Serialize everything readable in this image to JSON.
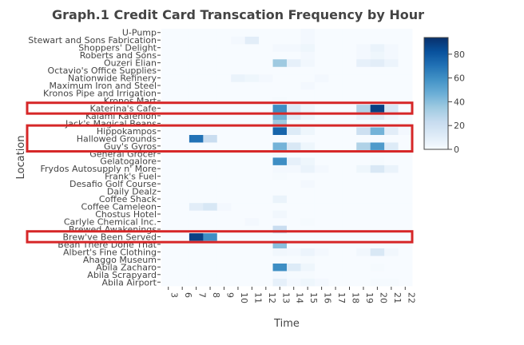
{
  "chart_data": {
    "type": "heatmap",
    "title": "Graph.1 Credit Card Transcation Frequency by Hour",
    "xlabel": "Time",
    "ylabel": "Location",
    "x": [
      "3",
      "6",
      "7",
      "8",
      "9",
      "10",
      "11",
      "12",
      "13",
      "14",
      "15",
      "16",
      "17",
      "18",
      "19",
      "20",
      "21",
      "22"
    ],
    "y": [
      "Abila Airport",
      "Abila Scrapyard",
      "Abila Zacharo",
      "Ahaggo Museum",
      "Albert's Fine Clothing",
      "Bean There Done That",
      "Brew've Been Served",
      "Brewed Awakenings",
      "Carlyle Chemical Inc.",
      "Chostus Hotel",
      "Coffee Cameleon",
      "Coffee Shack",
      "Daily Dealz",
      "Desafio Golf Course",
      "Frank's Fuel",
      "Frydos Autosupply n' More",
      "Gelatogalore",
      "General Grocer",
      "Guy's Gyros",
      "Hallowed Grounds",
      "Hippokampos",
      "Jack's Magical Beans",
      "Kalami Kafenion",
      "Katerina's Cafe",
      "Kronos Mart",
      "Kronos Pipe and Irrigation",
      "Maximum Iron and Steel",
      "Nationwide Refinery",
      "Octavio's Office Supplies",
      "Ouzeri Elian",
      "Roberts and Sons",
      "Shoppers' Delight",
      "Stewart and Sons Fabrication",
      "U-Pump"
    ],
    "z": [
      [
        0,
        0,
        0,
        0,
        0,
        0,
        0,
        0,
        8,
        2,
        4,
        2,
        0,
        0,
        0,
        1,
        1,
        0
      ],
      [
        0,
        0,
        0,
        0,
        0,
        0,
        0,
        0,
        2,
        1,
        1,
        0,
        0,
        0,
        0,
        0,
        0,
        0
      ],
      [
        0,
        0,
        0,
        0,
        0,
        0,
        0,
        0,
        60,
        12,
        4,
        0,
        0,
        0,
        0,
        1,
        0,
        0
      ],
      [
        0,
        0,
        0,
        0,
        0,
        0,
        0,
        0,
        0,
        0,
        1,
        0,
        0,
        0,
        0,
        0,
        0,
        0
      ],
      [
        0,
        0,
        0,
        0,
        0,
        0,
        0,
        0,
        3,
        2,
        5,
        2,
        0,
        0,
        3,
        14,
        3,
        0
      ],
      [
        0,
        0,
        0,
        0,
        0,
        0,
        0,
        0,
        40,
        0,
        0,
        0,
        0,
        0,
        0,
        0,
        0,
        0
      ],
      [
        0,
        0,
        88,
        60,
        0,
        0,
        0,
        0,
        0,
        0,
        0,
        0,
        0,
        0,
        0,
        0,
        0,
        0
      ],
      [
        0,
        0,
        0,
        0,
        0,
        0,
        0,
        0,
        22,
        0,
        0,
        0,
        0,
        0,
        0,
        0,
        0,
        0
      ],
      [
        0,
        0,
        0,
        0,
        0,
        0,
        2,
        0,
        0,
        0,
        1,
        0,
        0,
        0,
        0,
        0,
        0,
        0
      ],
      [
        0,
        0,
        0,
        0,
        0,
        0,
        0,
        0,
        3,
        0,
        0,
        0,
        0,
        0,
        0,
        0,
        0,
        0
      ],
      [
        0,
        0,
        10,
        15,
        2,
        0,
        0,
        0,
        0,
        0,
        0,
        0,
        0,
        0,
        0,
        0,
        0,
        0
      ],
      [
        0,
        0,
        0,
        0,
        0,
        0,
        0,
        0,
        6,
        0,
        0,
        0,
        0,
        0,
        0,
        0,
        0,
        0
      ],
      [
        0,
        0,
        0,
        0,
        0,
        0,
        0,
        0,
        0,
        0,
        0,
        0,
        0,
        0,
        0,
        0,
        0,
        0
      ],
      [
        0,
        0,
        0,
        0,
        0,
        0,
        0,
        0,
        0,
        0,
        2,
        0,
        0,
        0,
        0,
        0,
        0,
        0
      ],
      [
        0,
        0,
        0,
        0,
        0,
        0,
        0,
        0,
        1,
        0,
        0,
        0,
        0,
        0,
        0,
        0,
        0,
        0
      ],
      [
        0,
        0,
        0,
        0,
        0,
        0,
        0,
        0,
        2,
        2,
        6,
        2,
        0,
        0,
        4,
        14,
        6,
        0
      ],
      [
        0,
        0,
        0,
        0,
        0,
        0,
        0,
        0,
        60,
        8,
        4,
        0,
        0,
        0,
        0,
        1,
        0,
        0
      ],
      [
        0,
        0,
        0,
        0,
        0,
        0,
        0,
        0,
        2,
        0,
        0,
        0,
        0,
        0,
        0,
        0,
        0,
        0
      ],
      [
        0,
        0,
        0,
        0,
        0,
        0,
        0,
        0,
        45,
        14,
        4,
        0,
        0,
        0,
        30,
        55,
        12,
        0
      ],
      [
        0,
        0,
        70,
        22,
        0,
        0,
        0,
        0,
        0,
        0,
        0,
        0,
        0,
        0,
        0,
        0,
        0,
        0
      ],
      [
        0,
        0,
        0,
        0,
        0,
        0,
        0,
        0,
        75,
        12,
        4,
        0,
        0,
        0,
        20,
        45,
        10,
        2
      ],
      [
        0,
        0,
        0,
        0,
        0,
        0,
        0,
        0,
        35,
        0,
        0,
        0,
        0,
        0,
        0,
        0,
        0,
        0
      ],
      [
        0,
        0,
        0,
        0,
        0,
        0,
        0,
        0,
        45,
        10,
        4,
        0,
        0,
        0,
        5,
        10,
        3,
        0
      ],
      [
        0,
        0,
        0,
        0,
        0,
        0,
        0,
        0,
        60,
        12,
        4,
        0,
        0,
        0,
        30,
        88,
        15,
        0
      ],
      [
        0,
        0,
        0,
        0,
        0,
        0,
        0,
        0,
        1,
        0,
        0,
        0,
        0,
        0,
        0,
        0,
        0,
        0
      ],
      [
        0,
        0,
        0,
        0,
        0,
        0,
        0,
        0,
        0,
        0,
        0,
        0,
        0,
        0,
        0,
        0,
        0,
        0
      ],
      [
        0,
        0,
        0,
        0,
        0,
        0,
        0,
        0,
        0,
        0,
        2,
        0,
        0,
        0,
        0,
        0,
        0,
        0
      ],
      [
        0,
        0,
        0,
        0,
        0,
        6,
        4,
        2,
        0,
        0,
        0,
        2,
        0,
        0,
        0,
        0,
        0,
        0
      ],
      [
        0,
        0,
        0,
        0,
        0,
        0,
        0,
        0,
        0,
        0,
        0,
        0,
        0,
        0,
        0,
        0,
        0,
        0
      ],
      [
        0,
        0,
        0,
        0,
        0,
        0,
        0,
        0,
        35,
        8,
        3,
        0,
        0,
        0,
        8,
        10,
        5,
        0
      ],
      [
        0,
        0,
        0,
        0,
        0,
        0,
        0,
        0,
        0,
        0,
        2,
        0,
        0,
        0,
        2,
        4,
        2,
        0
      ],
      [
        0,
        0,
        0,
        0,
        0,
        0,
        0,
        0,
        2,
        2,
        4,
        0,
        0,
        0,
        2,
        6,
        2,
        0
      ],
      [
        0,
        0,
        0,
        0,
        0,
        2,
        10,
        0,
        0,
        0,
        2,
        0,
        0,
        0,
        0,
        0,
        0,
        0
      ],
      [
        0,
        0,
        0,
        0,
        0,
        0,
        0,
        0,
        0,
        0,
        2,
        0,
        0,
        0,
        0,
        0,
        0,
        0
      ]
    ],
    "zrange": [
      0,
      94
    ],
    "colorbar_ticks": [
      0,
      20,
      40,
      60,
      80
    ],
    "colorscale": [
      "#f7fbff",
      "#deebf7",
      "#c6dbef",
      "#9ecae1",
      "#6baed6",
      "#4292c6",
      "#2171b5",
      "#08519c",
      "#08306b"
    ],
    "highlight_rows": [
      [
        "Katerina's Cafe"
      ],
      [
        "Hippokampos",
        "Hallowed Grounds",
        "Guy's Gyros"
      ],
      [
        "Brew've Been Served"
      ]
    ],
    "highlight_color": "#d62728"
  }
}
